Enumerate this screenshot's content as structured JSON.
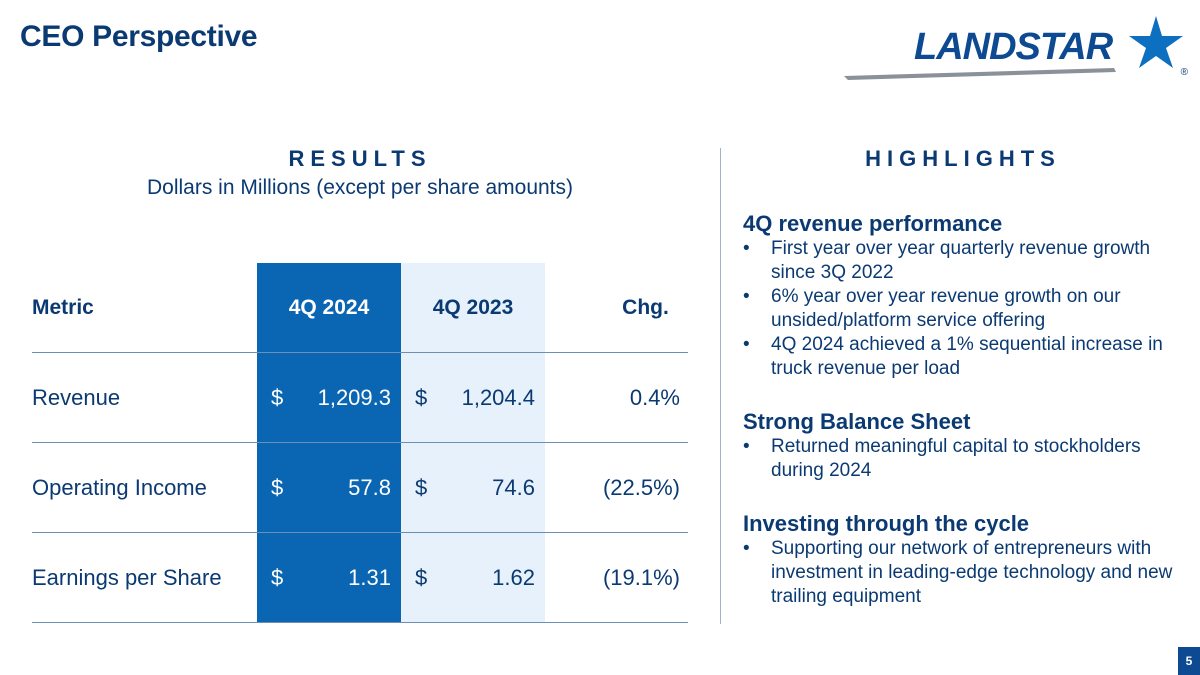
{
  "header": {
    "title": "CEO Perspective",
    "logo_text": "LANDSTAR",
    "logo_reg": "®"
  },
  "results": {
    "heading": "RESULTS",
    "subheading": "Dollars in Millions (except per share amounts)",
    "columns": [
      "Metric",
      "4Q 2024",
      "4Q 2023",
      "Chg."
    ],
    "currency_symbol": "$",
    "rows": [
      {
        "metric": "Revenue",
        "q4_2024": "1,209.3",
        "q4_2023": "1,204.4",
        "chg": "0.4%"
      },
      {
        "metric": "Operating Income",
        "q4_2024": "57.8",
        "q4_2023": "74.6",
        "chg": "(22.5%)"
      },
      {
        "metric": "Earnings per Share",
        "q4_2024": "1.31",
        "q4_2023": "1.62",
        "chg": "(19.1%)"
      }
    ]
  },
  "highlights": {
    "heading": "HIGHLIGHTS",
    "bullet_char": "•",
    "groups": [
      {
        "title": "4Q revenue performance",
        "bullets": [
          "First year over year quarterly revenue growth since 3Q 2022",
          "6% year over year revenue growth on our unsided/platform service offering",
          "4Q 2024 achieved a 1% sequential increase in truck revenue per load"
        ]
      },
      {
        "title": "Strong Balance Sheet",
        "bullets": [
          "Returned meaningful capital to stockholders during 2024"
        ]
      },
      {
        "title": "Investing through the cycle",
        "bullets": [
          "Supporting our network of entrepreneurs with investment in leading-edge technology and new trailing equipment"
        ]
      }
    ]
  },
  "footer": {
    "page_number": "5"
  },
  "colors": {
    "navy": "#0b3a73",
    "brand_blue": "#0a66b2",
    "light_blue": "#e6f1fb"
  }
}
